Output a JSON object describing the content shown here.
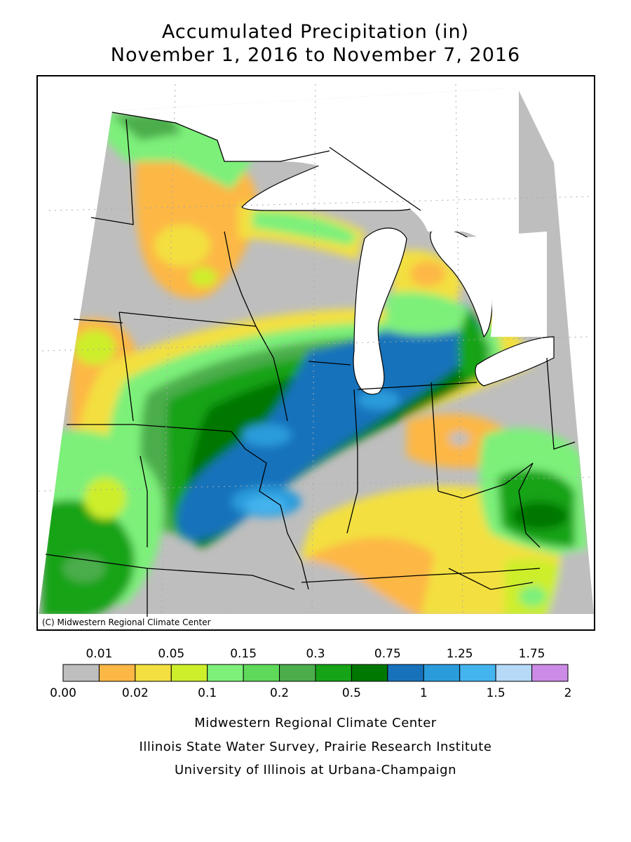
{
  "title": {
    "line1": "Accumulated Precipitation (in)",
    "line2": "November 1, 2016 to November 7, 2016"
  },
  "copyright": "(C) Midwestern Regional Climate Center",
  "legend": {
    "top_labels": [
      "0.01",
      "0.05",
      "0.15",
      "0.3",
      "0.75",
      "1.25",
      "1.75"
    ],
    "bottom_labels": [
      "0.00",
      "0.02",
      "0.1",
      "0.2",
      "0.5",
      "1",
      "1.5",
      "2"
    ],
    "colors": [
      "#bebebe",
      "#fdb745",
      "#f3e040",
      "#cdee2a",
      "#7df07a",
      "#5ed95a",
      "#4cad4c",
      "#17a317",
      "#007700",
      "#1872bb",
      "#2a9bdb",
      "#44b4ee",
      "#b5d9f7",
      "#cc8be6"
    ]
  },
  "credits": [
    "Midwestern Regional Climate Center",
    "Illinois State Water Survey, Prairie Research Institute",
    "University of Illinois at Urbana-Champaign"
  ]
}
